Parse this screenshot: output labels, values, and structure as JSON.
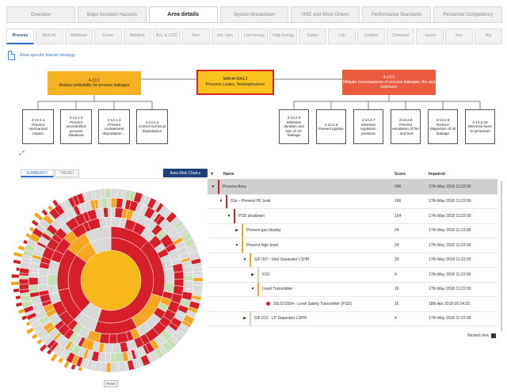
{
  "top_tabs": [
    {
      "label": "Overview"
    },
    {
      "label": "Major Accident Hazards"
    },
    {
      "label": "Area details"
    },
    {
      "label": "System Breakdown"
    },
    {
      "label": "HSE and Work Orders"
    },
    {
      "label": "Performance Standards"
    },
    {
      "label": "Personnel Competency"
    }
  ],
  "active_top_tab": "Area details",
  "sub_tabs": [
    {
      "label": "Process"
    },
    {
      "label": "Well Int."
    },
    {
      "label": "Wellhead"
    },
    {
      "label": "Crane"
    },
    {
      "label": "Helideck"
    },
    {
      "label": "Acc. & CCR"
    },
    {
      "label": "Gen"
    },
    {
      "label": "Em. Gen"
    },
    {
      "label": "Low Energy"
    },
    {
      "label": "High Energy"
    },
    {
      "label": "Galley"
    },
    {
      "label": "Lab"
    },
    {
      "label": "Outdoor"
    },
    {
      "label": "Chemical"
    },
    {
      "label": "Jacket"
    },
    {
      "label": "Inst."
    },
    {
      "label": "Rig"
    }
  ],
  "active_sub_tab": "Process",
  "strategy_link": "Area specific barrier strategy",
  "diagram": {
    "left": {
      "id": "4-13.1",
      "text": "Reduce probability for process leakages"
    },
    "center": {
      "id": "MAH4-BA13",
      "text": "Process Leaks, fire/explosions"
    },
    "right": {
      "id": "4-13.2",
      "text": "Mitigate consequences of process leakages, fire and explosion"
    },
    "left_children": [
      {
        "id": "4-13.1.1",
        "text": "Prevent mechanical impact"
      },
      {
        "id": "4-13.1.2",
        "text": "Prevent uncontrolled process situations"
      },
      {
        "id": "4-13.1.3",
        "text": "Prevent containment degradation ..."
      },
      {
        "id": "4-13.2.4",
        "text": "Control technical degradation"
      }
    ],
    "right_children": [
      {
        "id": "4-13.2.5",
        "text": "Minimise duration and size of HC leakage"
      },
      {
        "id": "4-13.2.6",
        "text": "Prevent ignition"
      },
      {
        "id": "4-13.2.7",
        "text": "Minimise explosion pressure"
      },
      {
        "id": "4-13.2.8",
        "text": "Prevent escalation of fire - and loss"
      },
      {
        "id": "4-13.2.9",
        "text": "Reduce dispersion of oil leakage"
      },
      {
        "id": "4-13.2.10",
        "text": "Minimise harm to personnel"
      }
    ]
  },
  "view_tabs": [
    {
      "label": "SUNBURST"
    },
    {
      "label": "TREND"
    }
  ],
  "risk_chart_button": "Area Risk Chart ▸",
  "table": {
    "headers": {
      "name": "Name",
      "score": "Score",
      "impaired": "Impaired"
    },
    "rows": [
      {
        "caret": "▼",
        "name": "Process Area",
        "score": "246",
        "impaired": "17th May 2018 11:22:00",
        "color": "#d61f2b",
        "selected": true
      },
      {
        "caret": "▼",
        "name": "01a – Prevent HC leak",
        "score": "166",
        "impaired": "17th May 2018 11:22:00",
        "color": "#d61f2b"
      },
      {
        "caret": "▼",
        "name": "PSD shutdown",
        "score": "164",
        "impaired": "17th May 2018 11:22:00",
        "color": "#d61f2b"
      },
      {
        "caret": "▶",
        "name": "Prevent gas blowby",
        "score": "24",
        "impaired": "17th May 2018 11:22:00",
        "color": "#f5a623"
      },
      {
        "caret": "▼",
        "name": "Prevent high-level",
        "score": "24",
        "impaired": "17th May 2018 11:22:00",
        "color": "#f5a623"
      },
      {
        "caret": "▼",
        "name": "SIF 007 - Inlet Separator LSHH",
        "score": "20",
        "impaired": "17th May 2018 11:22:00",
        "color": "#f5a623"
      },
      {
        "caret": "▶",
        "name": "XSV",
        "score": "4",
        "impaired": "17th May 2018 11:22:00",
        "color": "#c5e0b4"
      },
      {
        "caret": "▼",
        "name": "Level Transmitter",
        "score": "16",
        "impaired": "17th May 2018 11:22:00",
        "color": "#f5a623"
      },
      {
        "caret": "",
        "name": "20LST2004 - Level Safety Transmitter (PSD)",
        "score": "16",
        "impaired": "18th Apr 2018 09:24:25",
        "color": "#d61f2b",
        "dot": true
      },
      {
        "caret": "▶",
        "name": "SIF 013 - LP Separator LSHH",
        "score": "4",
        "impaired": "17th May 2018 11:22:00",
        "color": "#c5e0b4"
      }
    ]
  },
  "nested_view_label": "Nested view",
  "reset_label": "Reset",
  "colors": {
    "red": "#d61f2b",
    "orange": "#f5a623",
    "yellow": "#f9b81b",
    "grey": "#d9d9d9",
    "green": "#c5e0b4"
  }
}
